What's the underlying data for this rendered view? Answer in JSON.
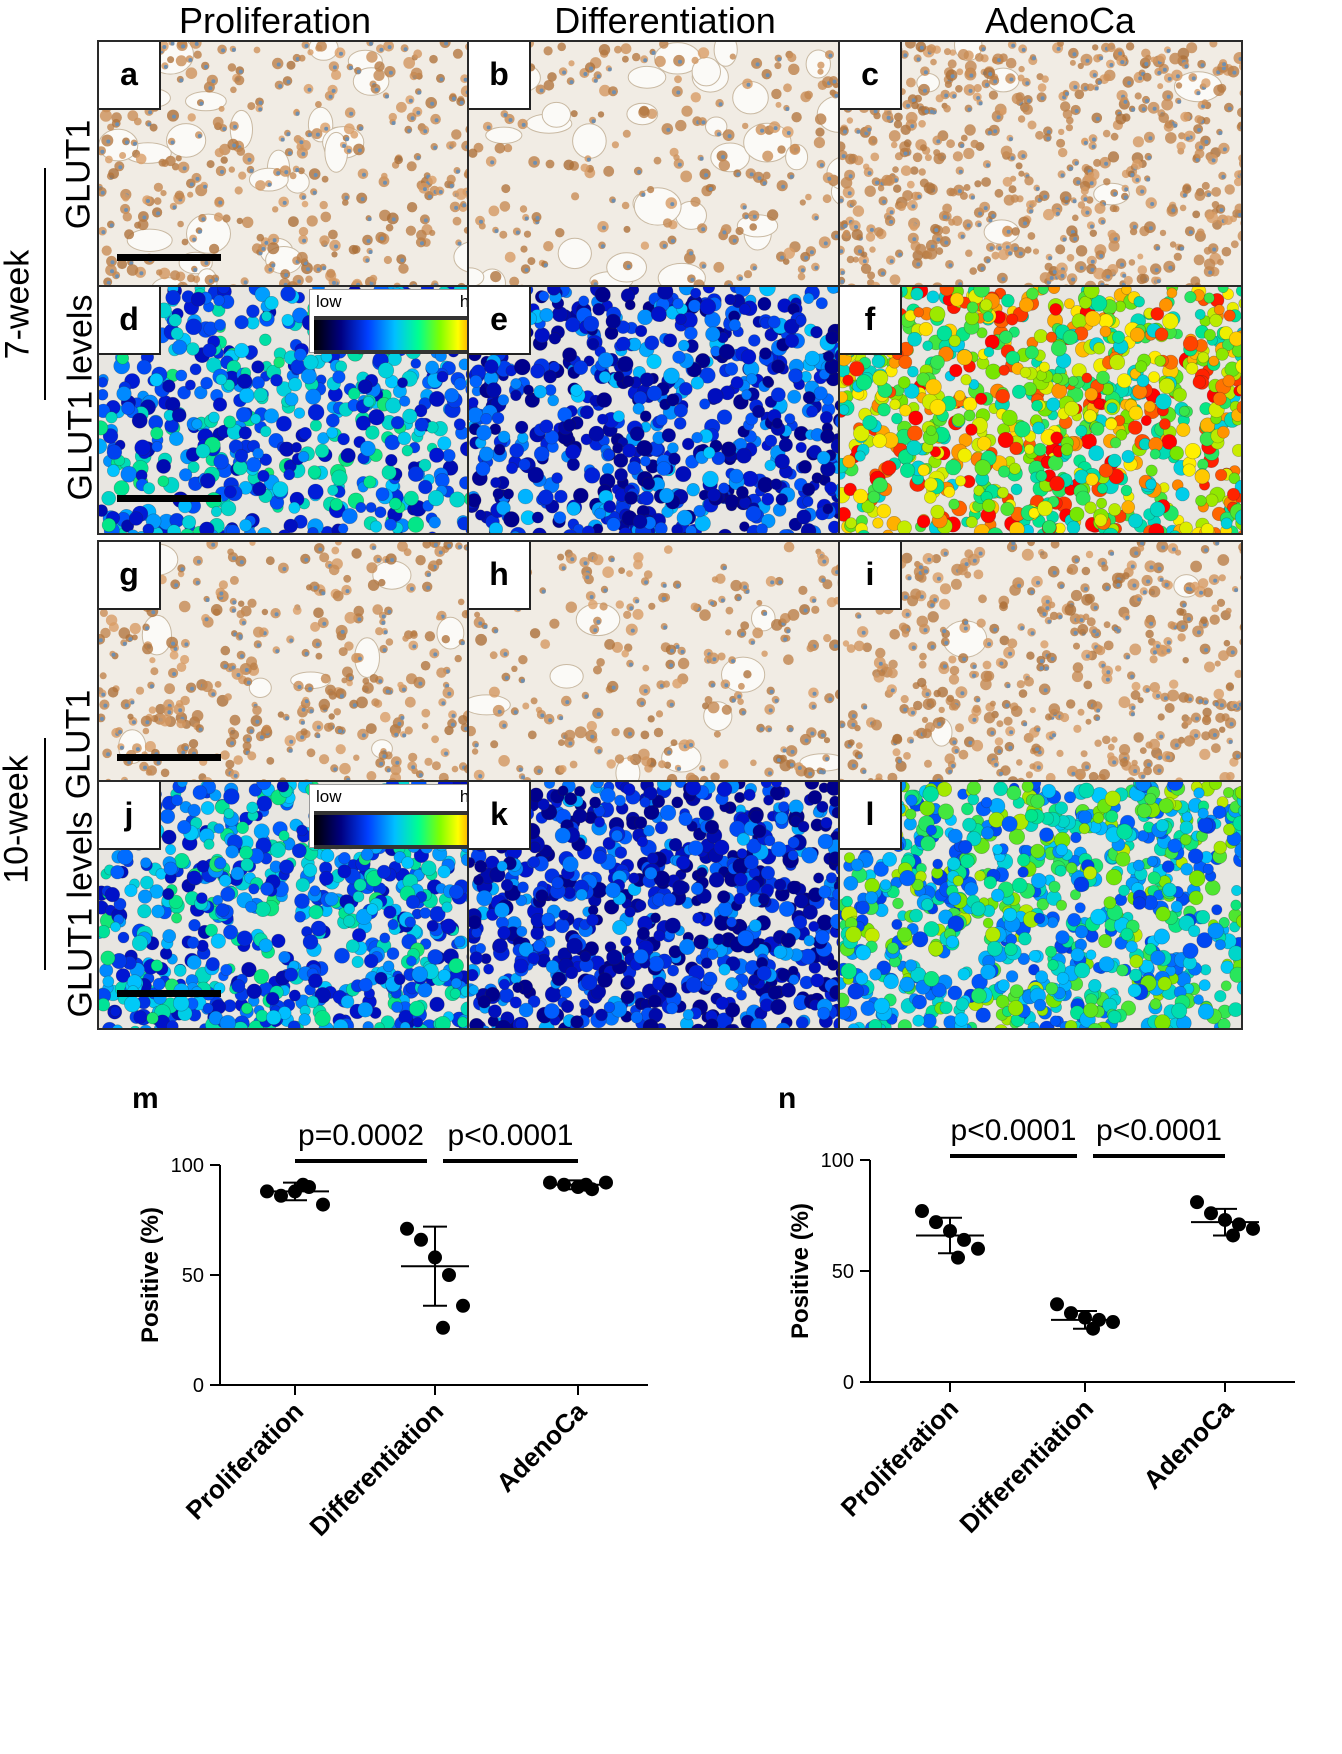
{
  "column_headers": [
    "Proliferation",
    "Differentiation",
    "AdenoCa"
  ],
  "row_labels": {
    "week7": "7-week",
    "week10": "10-week",
    "glut1": "GLUT1",
    "glut1_levels": "GLUT1 levels"
  },
  "panel_letters": [
    "a",
    "b",
    "c",
    "d",
    "e",
    "f",
    "g",
    "h",
    "i",
    "j",
    "k",
    "l"
  ],
  "colorbar": {
    "low": "low",
    "high": "high"
  },
  "chart_data": [
    {
      "panel": "m",
      "type": "scatter",
      "ylabel": "Positive (%)",
      "ylim": [
        0,
        100
      ],
      "yticks": [
        "0",
        "50",
        "100"
      ],
      "categories": [
        "Proliferation",
        "Differentiation",
        "AdenoCa"
      ],
      "points": [
        [
          88,
          86,
          88,
          90,
          82,
          91
        ],
        [
          71,
          66,
          58,
          50,
          36,
          26
        ],
        [
          92,
          91,
          90,
          89,
          92,
          91
        ]
      ],
      "mean": [
        88,
        54,
        91
      ],
      "sd": [
        [
          84,
          92
        ],
        [
          36,
          72
        ],
        [
          89,
          93
        ]
      ],
      "comparisons": [
        {
          "label": "p=0.0002",
          "from": 0,
          "to": 1
        },
        {
          "label": "p<0.0001",
          "from": 1,
          "to": 2
        }
      ],
      "dot_color": "#000000"
    },
    {
      "panel": "n",
      "type": "scatter",
      "ylabel": "Positive (%)",
      "ylim": [
        0,
        100
      ],
      "yticks": [
        "0",
        "50",
        "100"
      ],
      "categories": [
        "Proliferation",
        "Differentiation",
        "AdenoCa"
      ],
      "points": [
        [
          77,
          72,
          68,
          64,
          60,
          56
        ],
        [
          35,
          31,
          29,
          28,
          27,
          24
        ],
        [
          81,
          76,
          73,
          71,
          69,
          66
        ]
      ],
      "mean": [
        66,
        28,
        72
      ],
      "sd": [
        [
          58,
          74
        ],
        [
          24,
          32
        ],
        [
          66,
          78
        ]
      ],
      "comparisons": [
        {
          "label": "p<0.0001",
          "from": 0,
          "to": 1
        },
        {
          "label": "p<0.0001",
          "from": 1,
          "to": 2
        }
      ],
      "dot_color": "#000000"
    }
  ],
  "colors": {
    "tissue_bg": "#f1ece4",
    "brown_stain": "#b77a45",
    "nuclei_blue": "#6f8fb0",
    "heat_low": "#0010c0",
    "heat_high": "#ff0000"
  }
}
